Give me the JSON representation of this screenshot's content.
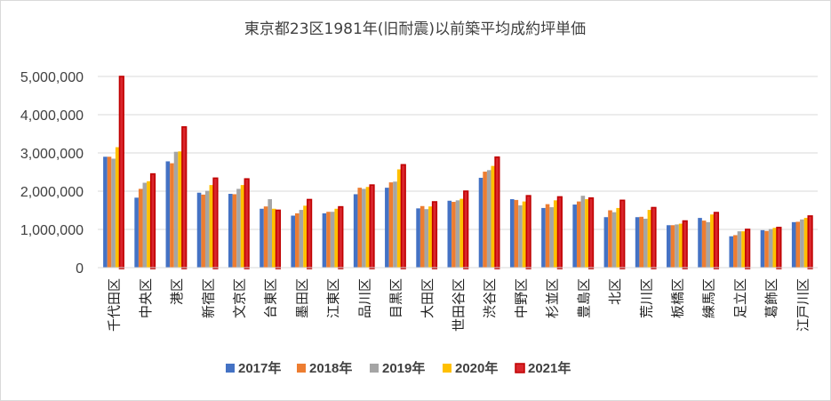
{
  "chart_data": {
    "type": "bar",
    "title": "東京都23区1981年(旧耐震)以前築平均成約坪単価",
    "xlabel": "",
    "ylabel": "",
    "ylim": [
      0,
      5000000
    ],
    "yticks": [
      0,
      1000000,
      2000000,
      3000000,
      4000000,
      5000000
    ],
    "ytick_labels": [
      "0",
      "1,000,000",
      "2,000,000",
      "3,000,000",
      "4,000,000",
      "5,000,000"
    ],
    "grid": true,
    "legend_position": "bottom",
    "categories": [
      "千代田区",
      "中央区",
      "港区",
      "新宿区",
      "文京区",
      "台東区",
      "墨田区",
      "江東区",
      "品川区",
      "目黒区",
      "大田区",
      "世田谷区",
      "渋谷区",
      "中野区",
      "杉並区",
      "豊島区",
      "北区",
      "荒川区",
      "板橋区",
      "練馬区",
      "足立区",
      "葛飾区",
      "江戸川区"
    ],
    "series": [
      {
        "name": "2017年",
        "color": "#4472c4",
        "values": [
          2900000,
          1830000,
          2780000,
          1960000,
          1930000,
          1540000,
          1360000,
          1420000,
          1920000,
          2090000,
          1550000,
          1750000,
          2350000,
          1790000,
          1560000,
          1650000,
          1320000,
          1320000,
          1110000,
          1300000,
          820000,
          980000,
          1190000
        ]
      },
      {
        "name": "2018年",
        "color": "#ed7d31",
        "values": [
          2900000,
          2060000,
          2730000,
          1910000,
          1920000,
          1600000,
          1420000,
          1460000,
          2090000,
          2230000,
          1610000,
          1720000,
          2510000,
          1770000,
          1660000,
          1730000,
          1500000,
          1330000,
          1110000,
          1230000,
          850000,
          960000,
          1200000
        ]
      },
      {
        "name": "2019年",
        "color": "#a5a5a5",
        "values": [
          2850000,
          2220000,
          3030000,
          2010000,
          2060000,
          1790000,
          1510000,
          1460000,
          2060000,
          2250000,
          1530000,
          1760000,
          2550000,
          1630000,
          1580000,
          1880000,
          1450000,
          1280000,
          1130000,
          1190000,
          950000,
          1010000,
          1260000
        ]
      },
      {
        "name": "2020年",
        "color": "#ffc000",
        "values": [
          3150000,
          2260000,
          3040000,
          2160000,
          2160000,
          1540000,
          1620000,
          1540000,
          2110000,
          2570000,
          1600000,
          1800000,
          2660000,
          1730000,
          1760000,
          1790000,
          1560000,
          1510000,
          1150000,
          1390000,
          950000,
          1040000,
          1300000
        ]
      },
      {
        "name": "2021年",
        "color": "#d9262c",
        "edge": "#c00000",
        "values": [
          5000000,
          2450000,
          3680000,
          2340000,
          2320000,
          1500000,
          1780000,
          1590000,
          2160000,
          2690000,
          1720000,
          2000000,
          2890000,
          1880000,
          1850000,
          1820000,
          1760000,
          1570000,
          1220000,
          1440000,
          1000000,
          1050000,
          1350000
        ]
      }
    ]
  }
}
